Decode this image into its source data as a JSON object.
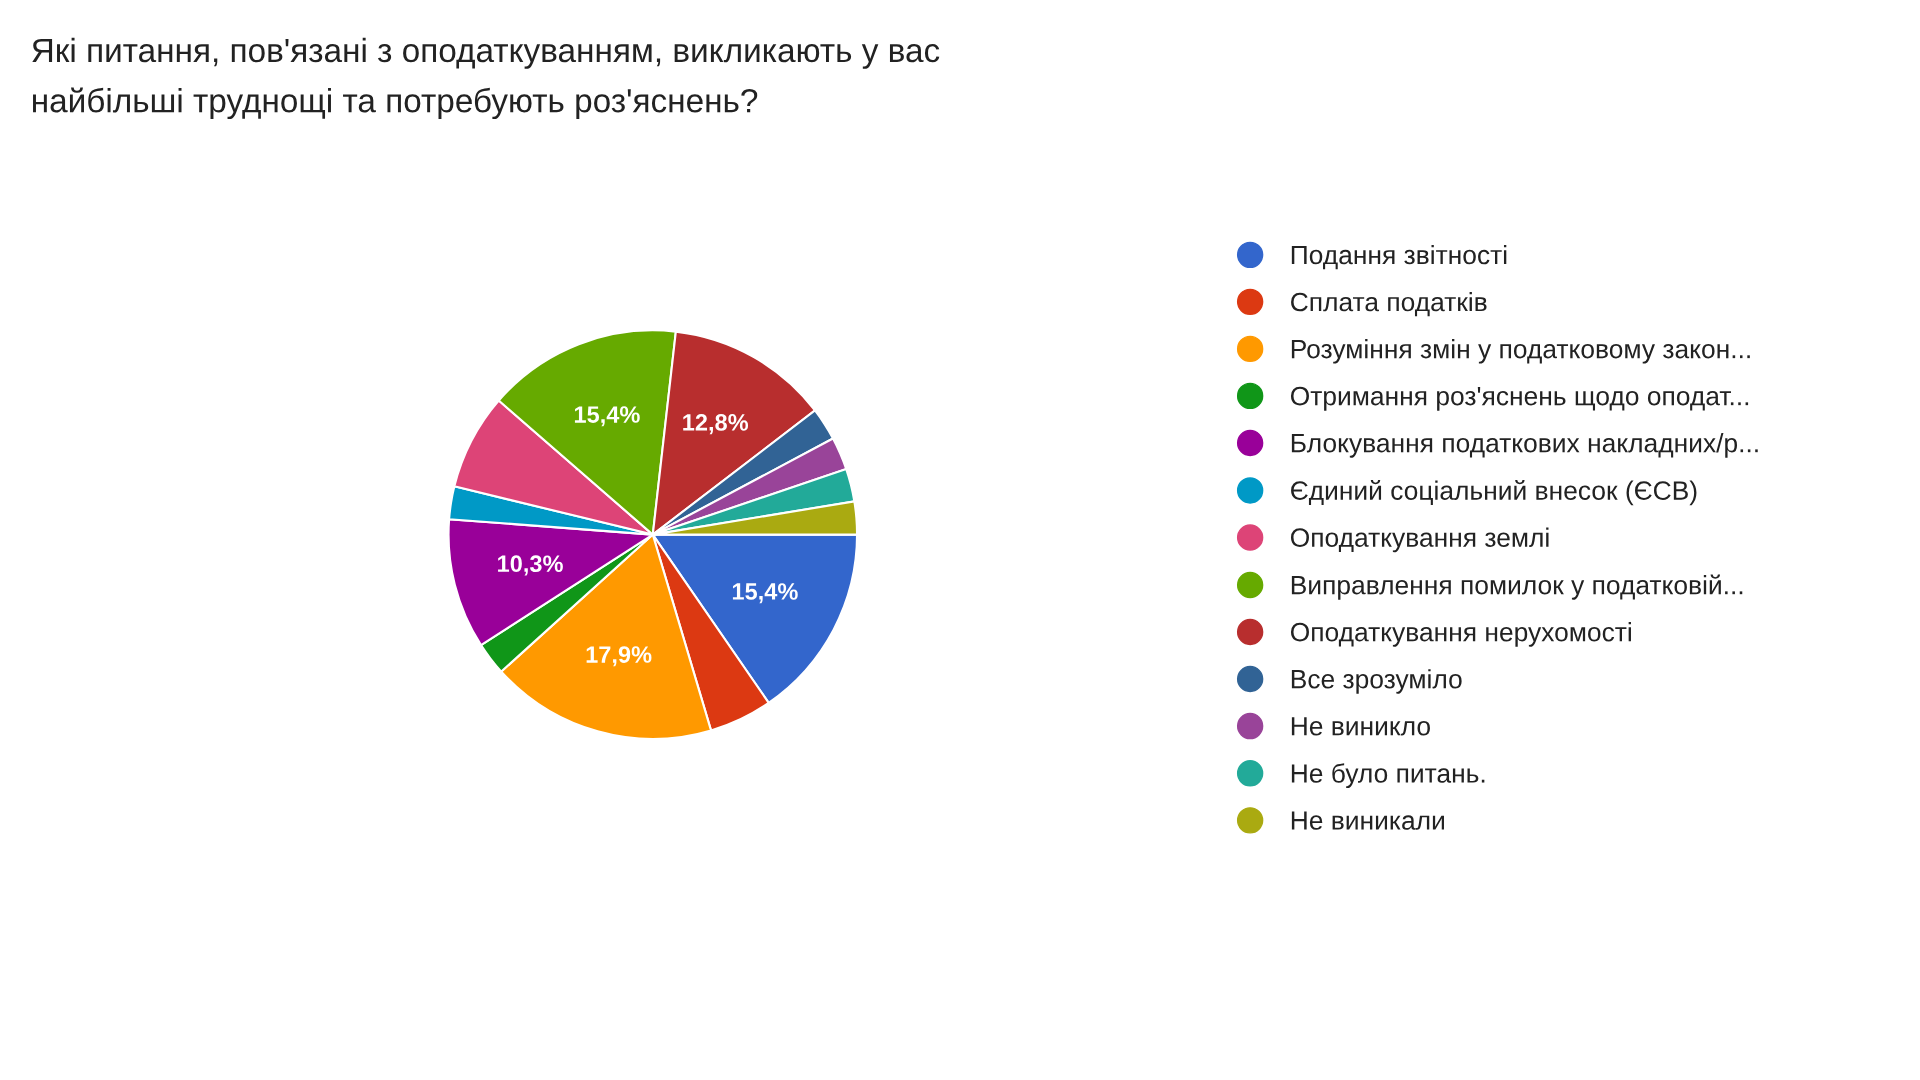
{
  "chart_data": {
    "type": "pie",
    "title": "Які питання, пов'язані з оподаткуванням, викликають у вас\nнайбільші труднощі та потребують роз'яснень?",
    "categories": [
      "Подання звітності",
      "Сплата податків",
      "Розуміння змін у податковому закон...",
      "Отримання роз'яснень щодо оподат...",
      "Блокування податкових накладних/р...",
      "Єдиний соціальний внесок (ЄСВ)",
      "Оподаткування землі",
      "Виправлення помилок у податковій...",
      "Оподаткування нерухомості",
      "Все зрозуміло",
      "Не виникло",
      "Не було питань.",
      "Не виникали"
    ],
    "values": [
      15.4,
      5.0,
      17.9,
      2.6,
      10.3,
      2.6,
      7.6,
      15.4,
      12.8,
      2.6,
      2.6,
      2.6,
      2.6
    ],
    "colors": [
      "#3366cc",
      "#dc3912",
      "#ff9900",
      "#109618",
      "#990099",
      "#0099c6",
      "#dd4477",
      "#66aa00",
      "#b82e2e",
      "#316395",
      "#994499",
      "#22aa99",
      "#aaaa11"
    ],
    "value_labels": [
      "15,4%",
      null,
      "17,9%",
      null,
      "10,3%",
      null,
      null,
      "15,4%",
      "12,8%",
      null,
      null,
      null,
      null
    ],
    "legend": "right"
  }
}
